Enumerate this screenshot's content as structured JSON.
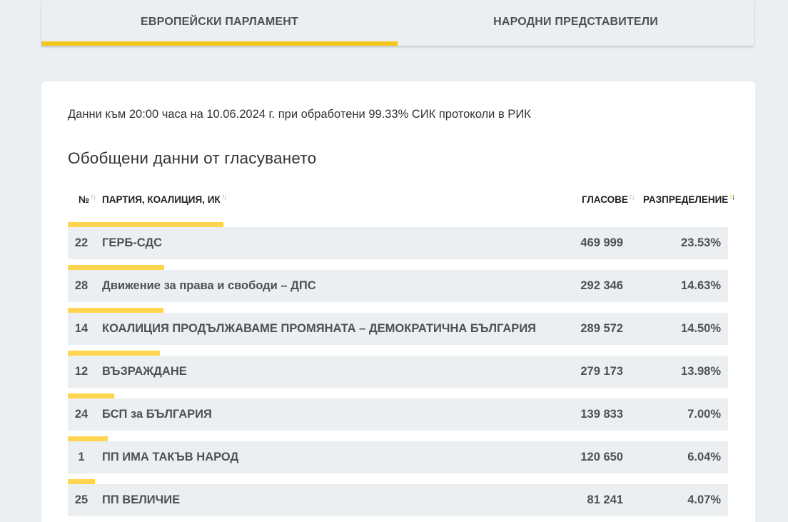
{
  "tabs": [
    {
      "label": "ЕВРОПЕЙСКИ ПАРЛАМЕНТ",
      "active": true
    },
    {
      "label": "НАРОДНИ ПРЕДСТАВИТЕЛИ",
      "active": false
    }
  ],
  "info_text": "Данни към 20:00 часа на 10.06.2024 г. при обработени 99.33% СИК протоколи в РИК",
  "heading": "Обобщени данни от гласуването",
  "columns": {
    "number": "№",
    "party": "ПАРТИЯ, КОАЛИЦИЯ, ИК",
    "votes": "ГЛАСОВЕ",
    "share": "РАЗПРЕДЕЛЕНИЕ"
  },
  "colors": {
    "accent": "#f5c517",
    "bar": "#ffd54f",
    "row_bg": "#eceff1"
  },
  "rows": [
    {
      "num": "22",
      "name": "ГЕРБ-СДС",
      "votes": "469 999",
      "pct": "23.53%",
      "share": 0.2353
    },
    {
      "num": "28",
      "name": "Движение за права и свободи – ДПС",
      "votes": "292 346",
      "pct": "14.63%",
      "share": 0.1463
    },
    {
      "num": "14",
      "name": "КОАЛИЦИЯ ПРОДЪЛЖАВАМЕ ПРОМЯНАТА – ДЕМОКРАТИЧНА БЪЛГАРИЯ",
      "votes": "289 572",
      "pct": "14.50%",
      "share": 0.145
    },
    {
      "num": "12",
      "name": "ВЪЗРАЖДАНЕ",
      "votes": "279 173",
      "pct": "13.98%",
      "share": 0.1398
    },
    {
      "num": "24",
      "name": "БСП за БЪЛГАРИЯ",
      "votes": "139 833",
      "pct": "7.00%",
      "share": 0.07
    },
    {
      "num": "1",
      "name": "ПП ИМА ТАКЪВ НАРОД",
      "votes": "120 650",
      "pct": "6.04%",
      "share": 0.0604
    },
    {
      "num": "25",
      "name": "ПП ВЕЛИЧИЕ",
      "votes": "81 241",
      "pct": "4.07%",
      "share": 0.0407
    }
  ]
}
